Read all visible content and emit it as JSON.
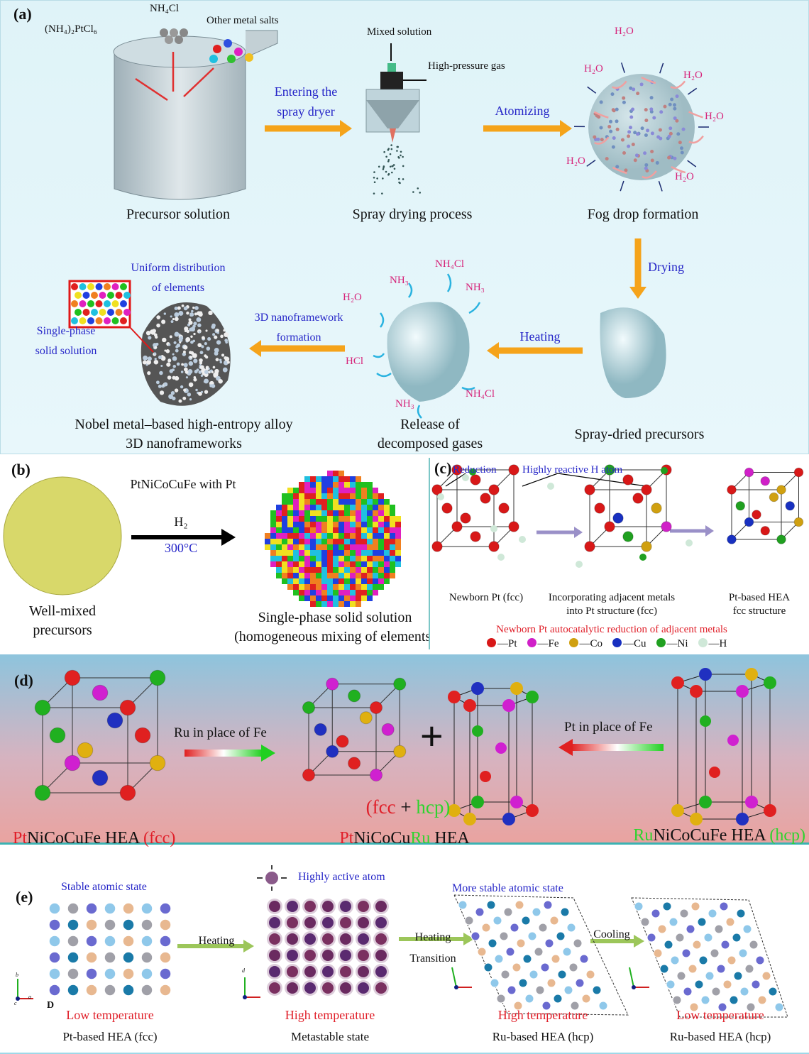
{
  "panel_a": {
    "label": "(a)",
    "reagents": {
      "pt_salt": "(NH₄)₂PtCl₆",
      "nh4cl": "NH₄Cl",
      "other": "Other metal salts"
    },
    "spray_inputs": {
      "mixed": "Mixed solution",
      "gas": "High-pressure gas"
    },
    "arrows": {
      "enter_1": "Entering the",
      "enter_2": "spray dryer",
      "atomizing": "Atomizing",
      "drying": "Drying",
      "heating": "Heating",
      "nano_1": "3D nanoframework",
      "nano_2": "formation"
    },
    "water": [
      "H₂O",
      "H₂O",
      "H₂O",
      "H₂O",
      "H₂O",
      "H₂O"
    ],
    "steps": {
      "precursor": "Precursor solution",
      "spray": "Spray drying process",
      "fog": "Fog drop formation",
      "dried": "Spray-dried precursors",
      "release_1": "Release of",
      "release_2": "decomposed gases",
      "final_1": "Nobel metal–based high-entropy alloy",
      "final_2": "3D nanoframeworks"
    },
    "inset": {
      "uniform_1": "Uniform distribution",
      "uniform_2": "of elements",
      "single_1": "Single-phase",
      "single_2": "solid solution"
    },
    "gases": [
      "H₂O",
      "NH₃",
      "NH₄Cl",
      "NH₃",
      "HCl",
      "NH₃",
      "NH₄Cl"
    ]
  },
  "panel_b": {
    "label": "(b)",
    "title": "PtNiCoCuFe with Pt",
    "gas": "H₂",
    "temp": "300°C",
    "left_1": "Well-mixed",
    "left_2": "precursors",
    "right_1": "Single-phase solid solution",
    "right_2": "(homogeneous mixing of elements)"
  },
  "panel_c": {
    "label": "(c)",
    "reduction": "Reduction",
    "h_atom": "Highly reactive H atom",
    "stage1": "Newborn Pt (fcc)",
    "stage2_1": "Incorporating adjacent metals",
    "stage2_2": "into Pt structure (fcc)",
    "stage3_1": "Pt-based HEA",
    "stage3_2": "fcc structure",
    "caption": "Newborn Pt autocatalytic reduction of adjacent metals",
    "legend": [
      {
        "label": "—Pt",
        "color": "#d81818"
      },
      {
        "label": "—Fe",
        "color": "#d020c8"
      },
      {
        "label": "—Co",
        "color": "#d0a010"
      },
      {
        "label": "—Cu",
        "color": "#1830c0"
      },
      {
        "label": "—Ni",
        "color": "#20a020"
      },
      {
        "label": "—H",
        "color": "#cfe8d8"
      }
    ]
  },
  "panel_d": {
    "label": "(d)",
    "ru_for_fe": "Ru in place of Fe",
    "pt_for_fe": "Pt in place of Fe",
    "plus": "+",
    "mix_open": "(",
    "mix_fcc": "fcc",
    "mix_plus": " + ",
    "mix_hcp": "hcp",
    "mix_close": ")",
    "left_pt": "Pt",
    "left_rest": "NiCoCuFe HEA ",
    "left_phase": "(fcc)",
    "mid_pt": "Pt",
    "mid_mid": "NiCoCu",
    "mid_ru": "Ru",
    "mid_rest": " HEA",
    "right_ru": "Ru",
    "right_rest": "NiCoCuFe HEA ",
    "right_phase": "(hcp)"
  },
  "panel_e": {
    "label": "(e)",
    "stable": "Stable atomic state",
    "active": "Highly active atom",
    "more_stable": "More stable atomic state",
    "heating1": "Heating",
    "heating2": "Heating",
    "transition": "Transition",
    "cooling": "Cooling",
    "temps": [
      "Low temperature",
      "High temperature",
      "High temperature",
      "Low temperature"
    ],
    "states": [
      "Pt-based HEA (fcc)",
      "Metastable state",
      "Ru-based HEA (hcp)",
      "Ru-based HEA (hcp)"
    ],
    "axes": {
      "a": "a",
      "b": "b",
      "c": "c",
      "d": "d"
    },
    "stray": "D"
  },
  "colors": {
    "arrow_orange": "#f5a31a",
    "arrow_green": "#9cc65a",
    "blue_text": "#2626c8",
    "pink_text": "#d6247a",
    "red_text": "#e0202a",
    "green_text": "#2ed32e"
  }
}
